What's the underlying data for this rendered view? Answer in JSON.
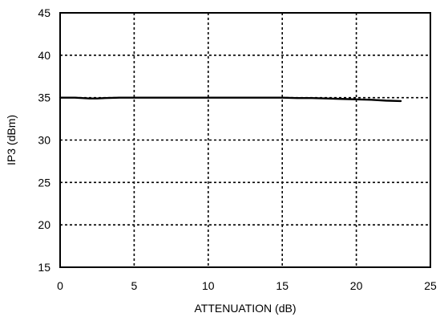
{
  "chart_data": {
    "type": "line",
    "title": "",
    "xlabel": "ATTENUATION (dB)",
    "ylabel": "IP3 (dBm)",
    "xlim": [
      0,
      25
    ],
    "ylim": [
      15,
      45
    ],
    "xticks": [
      0,
      5,
      10,
      15,
      20,
      25
    ],
    "yticks": [
      15,
      20,
      25,
      30,
      35,
      40,
      45
    ],
    "xtick_labels": [
      "0",
      "5",
      "10",
      "15",
      "20",
      "25"
    ],
    "ytick_labels": [
      "15",
      "20",
      "25",
      "30",
      "35",
      "40",
      "45"
    ],
    "grid": true,
    "grid_style": "dotted",
    "legend": "none",
    "series": [
      {
        "color": "#000000",
        "x": [
          0,
          1,
          2,
          2.5,
          3,
          4,
          5,
          6,
          8,
          10,
          12,
          14,
          15,
          16,
          17,
          18,
          19,
          20,
          21,
          22,
          23
        ],
        "y": [
          35.0,
          35.0,
          34.9,
          34.9,
          34.95,
          35.0,
          35.0,
          35.0,
          35.0,
          35.0,
          35.0,
          35.0,
          35.0,
          34.95,
          34.95,
          34.9,
          34.85,
          34.8,
          34.75,
          34.65,
          34.6
        ]
      }
    ]
  }
}
